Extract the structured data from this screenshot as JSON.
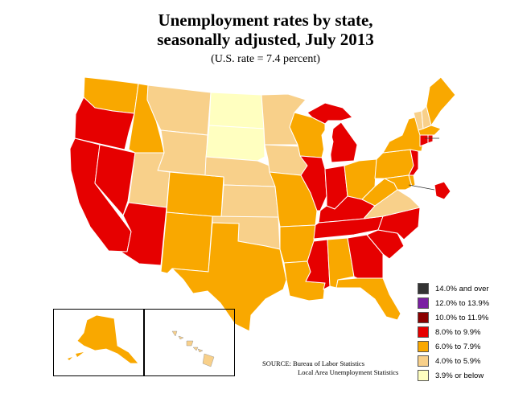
{
  "title": {
    "line1": "Unemployment rates by state,",
    "line2": "seasonally adjusted, July 2013"
  },
  "subtitle": "(U.S. rate = 7.4 percent)",
  "legend": [
    {
      "label": "14.0% and over",
      "color": "#333333"
    },
    {
      "label": "12.0% to 13.9%",
      "color": "#7a1fa2"
    },
    {
      "label": "10.0% to 11.9%",
      "color": "#8b0000"
    },
    {
      "label": "8.0% to 9.9%",
      "color": "#e60000"
    },
    {
      "label": "6.0% to 7.9%",
      "color": "#f9a800"
    },
    {
      "label": "4.0% to 5.9%",
      "color": "#f8d08a"
    },
    {
      "label": "3.9% or below",
      "color": "#ffffc0"
    }
  ],
  "source": {
    "line1": "SOURCE:   Bureau of Labor Statistics",
    "line2": "Local Area Unemployment Statistics"
  },
  "colors": {
    "band_8_9": "#e60000",
    "band_6_7": "#f9a800",
    "band_4_5": "#f8d08a",
    "band_le3": "#ffffc0",
    "border": "#ffffff",
    "outline": "#333333"
  }
}
